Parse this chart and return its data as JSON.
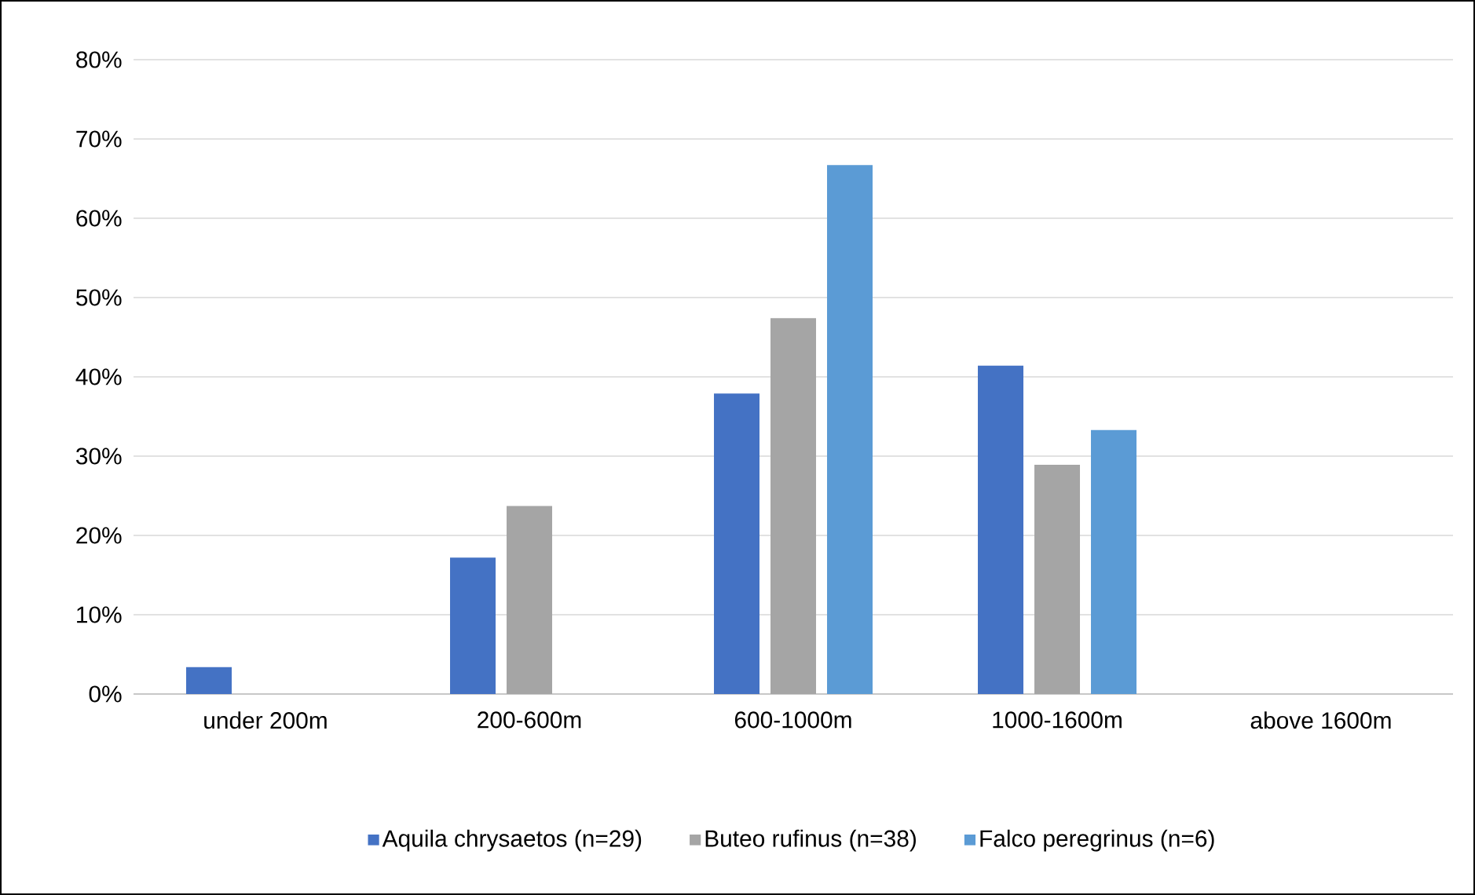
{
  "chart_data": {
    "type": "bar",
    "categories": [
      "under 200m",
      "200-600m",
      "600-1000m",
      "1000-1600m",
      "above 1600m"
    ],
    "series": [
      {
        "name": "Aquila chrysaetos (n=29)",
        "color": "#4472c4",
        "values": [
          3.4,
          17.2,
          37.9,
          41.4,
          0
        ]
      },
      {
        "name": "Buteo rufinus (n=38)",
        "color": "#a5a5a5",
        "values": [
          0,
          23.7,
          47.4,
          28.9,
          0
        ]
      },
      {
        "name": "Falco peregrinus (n=6)",
        "color": "#5b9bd5",
        "values": [
          0,
          0,
          66.7,
          33.3,
          0
        ]
      }
    ],
    "ylim": [
      0,
      80
    ],
    "yticks": [
      {
        "value": 0,
        "label": "0%"
      },
      {
        "value": 10,
        "label": "10%"
      },
      {
        "value": 20,
        "label": "20%"
      },
      {
        "value": 30,
        "label": "30%"
      },
      {
        "value": 40,
        "label": "40%"
      },
      {
        "value": 50,
        "label": "50%"
      },
      {
        "value": 60,
        "label": "60%"
      },
      {
        "value": 70,
        "label": "70%"
      },
      {
        "value": 80,
        "label": "80%"
      }
    ],
    "grid": "y",
    "legend": "bottom"
  }
}
